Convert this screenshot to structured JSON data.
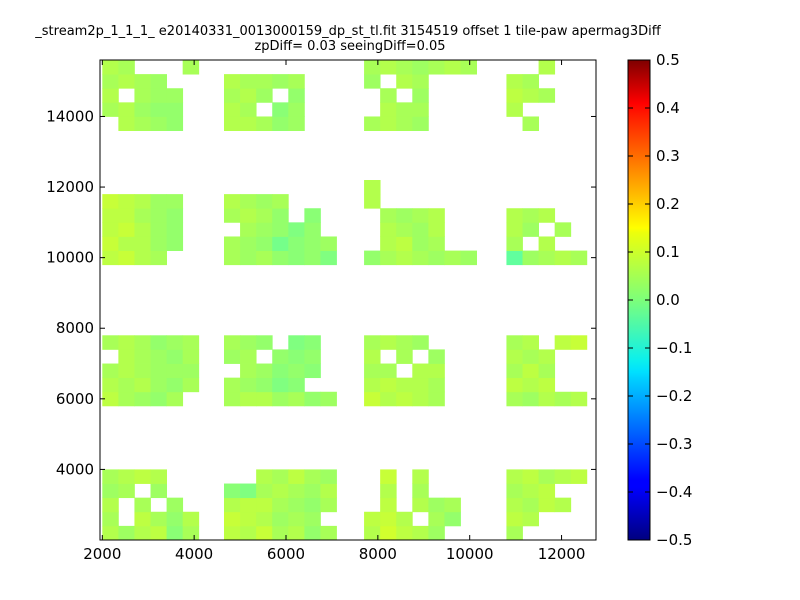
{
  "chart_data": {
    "type": "heatmap",
    "title": "_stream2p_1_1_1_ e20140331_0013000159_dp_st_tl.fit 3154519 offset 1 tile-paw apermag3Diff",
    "subtitle": "zpDiff= 0.03 seeingDiff=0.05",
    "xlabel": "",
    "ylabel": "",
    "xlim": [
      1950,
      12750
    ],
    "ylim": [
      2000,
      15600
    ],
    "x_ticks": [
      2000,
      4000,
      6000,
      8000,
      10000,
      12000
    ],
    "y_ticks": [
      4000,
      6000,
      8000,
      10000,
      12000,
      14000
    ],
    "x_tick_labels": [
      "2000",
      "4000",
      "6000",
      "8000",
      "10000",
      "12000"
    ],
    "y_tick_labels": [
      "4000",
      "6000",
      "8000",
      "10000",
      "12000",
      "14000"
    ],
    "colorbar": {
      "min": -0.5,
      "max": 0.5,
      "ticks": [
        "0.5",
        "0.4",
        "0.3",
        "0.2",
        "0.1",
        "0.0",
        "−0.1",
        "−0.2",
        "−0.3",
        "−0.4",
        "−0.5"
      ],
      "colormap": "jet"
    },
    "grid": false,
    "cell_size": [
      350,
      400
    ],
    "columns_x": [
      2000,
      2350,
      2700,
      3050,
      3400,
      3750,
      4650,
      5000,
      5350,
      5700,
      6050,
      6400,
      6750,
      7700,
      8050,
      8400,
      8750,
      9100,
      9450,
      9800,
      10800,
      11150,
      11500,
      11850,
      12200
    ],
    "rows_y": [
      2000,
      2400,
      2800,
      3200,
      3600,
      4000,
      5800,
      6200,
      6600,
      7000,
      7400,
      7800,
      9800,
      10200,
      10600,
      11000,
      11400,
      11800,
      12200,
      13600,
      14000,
      14400,
      14800,
      15200
    ],
    "values": [
      [
        0.05,
        0.03,
        0.05,
        0.06,
        0.01,
        0.04,
        0.06,
        0.05,
        0.07,
        0.04,
        0.05,
        0.02,
        0.04,
        0.05,
        0.08,
        0.06,
        0.05,
        0.03,
        null,
        null,
        0.04,
        null,
        null,
        null,
        null
      ],
      [
        0.04,
        null,
        0.06,
        0.04,
        0.02,
        0.05,
        0.07,
        0.06,
        0.05,
        0.03,
        0.04,
        0.03,
        null,
        0.06,
        0.07,
        0.05,
        null,
        0.04,
        0.02,
        null,
        0.06,
        0.05,
        null,
        null,
        null
      ],
      [
        0.05,
        null,
        0.04,
        null,
        0.03,
        null,
        0.05,
        0.06,
        0.06,
        0.04,
        0.03,
        0.02,
        0.04,
        null,
        0.06,
        null,
        0.05,
        0.03,
        0.04,
        null,
        0.05,
        0.04,
        0.06,
        0.05,
        null
      ],
      [
        0.03,
        0.04,
        null,
        0.03,
        null,
        null,
        0.01,
        0.0,
        0.04,
        0.05,
        0.04,
        0.03,
        0.05,
        null,
        0.05,
        null,
        0.04,
        null,
        null,
        null,
        0.04,
        0.05,
        0.06,
        null,
        null
      ],
      [
        0.04,
        0.05,
        0.06,
        0.05,
        null,
        null,
        null,
        null,
        0.05,
        0.04,
        0.06,
        0.04,
        0.03,
        null,
        0.07,
        null,
        0.05,
        null,
        null,
        null,
        0.05,
        0.06,
        0.04,
        0.05,
        0.06
      ],
      [
        null,
        null,
        null,
        null,
        null,
        null,
        null,
        null,
        null,
        null,
        null,
        null,
        null,
        null,
        null,
        null,
        null,
        null,
        null,
        null,
        null,
        null,
        null,
        null,
        null
      ],
      [
        0.06,
        0.04,
        0.03,
        0.02,
        0.04,
        null,
        0.04,
        0.05,
        0.05,
        0.03,
        0.04,
        0.02,
        0.03,
        0.07,
        0.05,
        0.06,
        0.05,
        0.04,
        null,
        null,
        0.04,
        0.03,
        0.05,
        0.04,
        0.05
      ],
      [
        0.05,
        0.04,
        0.05,
        0.03,
        0.02,
        0.04,
        0.04,
        0.03,
        0.02,
        0.0,
        0.01,
        null,
        null,
        0.05,
        0.06,
        0.05,
        0.05,
        0.04,
        null,
        null,
        0.06,
        0.05,
        0.06,
        null,
        null
      ],
      [
        0.04,
        0.05,
        0.04,
        0.03,
        0.03,
        0.03,
        null,
        0.04,
        0.03,
        0.01,
        0.02,
        0.01,
        null,
        0.04,
        0.04,
        null,
        0.05,
        0.05,
        null,
        null,
        0.04,
        0.06,
        0.04,
        null,
        null
      ],
      [
        null,
        0.05,
        0.04,
        0.03,
        0.02,
        0.04,
        0.03,
        0.04,
        null,
        0.02,
        0.01,
        0.02,
        null,
        0.05,
        null,
        0.04,
        null,
        0.03,
        null,
        null,
        0.05,
        0.04,
        0.05,
        null,
        null
      ],
      [
        0.04,
        0.05,
        0.04,
        0.02,
        0.03,
        0.04,
        0.04,
        0.03,
        0.02,
        null,
        0.0,
        0.01,
        null,
        0.04,
        0.05,
        0.04,
        0.03,
        null,
        null,
        null,
        0.04,
        0.05,
        null,
        0.06,
        0.07
      ],
      [
        null,
        null,
        null,
        null,
        null,
        null,
        null,
        null,
        null,
        null,
        null,
        null,
        null,
        null,
        null,
        null,
        null,
        null,
        null,
        null,
        null,
        null,
        null,
        null,
        null
      ],
      [
        0.06,
        0.07,
        0.05,
        0.04,
        null,
        null,
        0.04,
        0.03,
        0.04,
        0.02,
        0.01,
        0.02,
        0.0,
        0.02,
        0.04,
        0.05,
        0.04,
        0.03,
        0.04,
        0.03,
        -0.03,
        0.03,
        0.04,
        0.05,
        0.04
      ],
      [
        0.07,
        0.05,
        0.05,
        0.03,
        0.02,
        null,
        0.04,
        0.03,
        0.02,
        -0.01,
        0.01,
        0.02,
        0.03,
        null,
        0.05,
        0.06,
        0.03,
        0.04,
        null,
        null,
        0.04,
        null,
        0.05,
        null,
        null
      ],
      [
        0.06,
        0.07,
        0.05,
        0.03,
        0.02,
        null,
        null,
        0.04,
        0.03,
        0.02,
        0.0,
        0.02,
        null,
        null,
        0.05,
        0.04,
        0.03,
        0.05,
        null,
        null,
        0.05,
        0.03,
        null,
        0.04,
        null
      ],
      [
        0.06,
        0.06,
        0.04,
        0.03,
        0.02,
        null,
        0.04,
        0.05,
        0.04,
        0.02,
        null,
        0.01,
        null,
        null,
        0.04,
        0.03,
        0.04,
        0.05,
        null,
        null,
        0.05,
        0.04,
        0.05,
        null,
        null
      ],
      [
        0.07,
        0.06,
        0.05,
        0.03,
        0.03,
        null,
        0.05,
        0.04,
        0.03,
        0.04,
        null,
        null,
        null,
        0.05,
        null,
        null,
        null,
        null,
        null,
        null,
        null,
        null,
        null,
        null,
        null
      ],
      [
        null,
        null,
        null,
        null,
        null,
        null,
        null,
        null,
        null,
        null,
        null,
        null,
        null,
        0.05,
        null,
        null,
        null,
        null,
        null,
        null,
        null,
        null,
        null,
        null,
        null
      ],
      [
        null,
        null,
        null,
        null,
        null,
        null,
        null,
        null,
        null,
        null,
        null,
        null,
        null,
        null,
        null,
        null,
        null,
        null,
        null,
        null,
        null,
        null,
        null,
        null,
        null
      ],
      [
        null,
        0.05,
        0.04,
        0.03,
        0.02,
        null,
        0.05,
        0.05,
        0.04,
        0.02,
        0.03,
        null,
        null,
        0.04,
        0.05,
        0.04,
        0.03,
        null,
        null,
        null,
        null,
        0.04,
        null,
        null,
        null
      ],
      [
        0.04,
        0.05,
        0.03,
        0.02,
        0.02,
        null,
        0.05,
        0.04,
        null,
        0.01,
        0.03,
        null,
        null,
        null,
        0.05,
        0.04,
        0.04,
        null,
        null,
        null,
        0.05,
        null,
        null,
        null,
        null
      ],
      [
        0.05,
        null,
        0.04,
        0.03,
        0.03,
        null,
        0.04,
        0.05,
        0.03,
        null,
        0.02,
        null,
        null,
        null,
        0.04,
        null,
        0.03,
        null,
        null,
        null,
        0.06,
        0.05,
        0.04,
        null,
        null
      ],
      [
        0.04,
        0.05,
        0.04,
        0.03,
        null,
        null,
        0.05,
        0.04,
        0.04,
        0.03,
        0.04,
        null,
        null,
        0.03,
        null,
        0.05,
        0.04,
        null,
        null,
        null,
        0.05,
        0.04,
        null,
        null,
        null
      ],
      [
        0.05,
        0.04,
        null,
        null,
        null,
        0.04,
        null,
        null,
        null,
        null,
        null,
        null,
        null,
        0.04,
        0.05,
        0.04,
        0.03,
        0.04,
        0.05,
        0.04,
        null,
        null,
        0.05,
        null,
        null
      ]
    ]
  }
}
